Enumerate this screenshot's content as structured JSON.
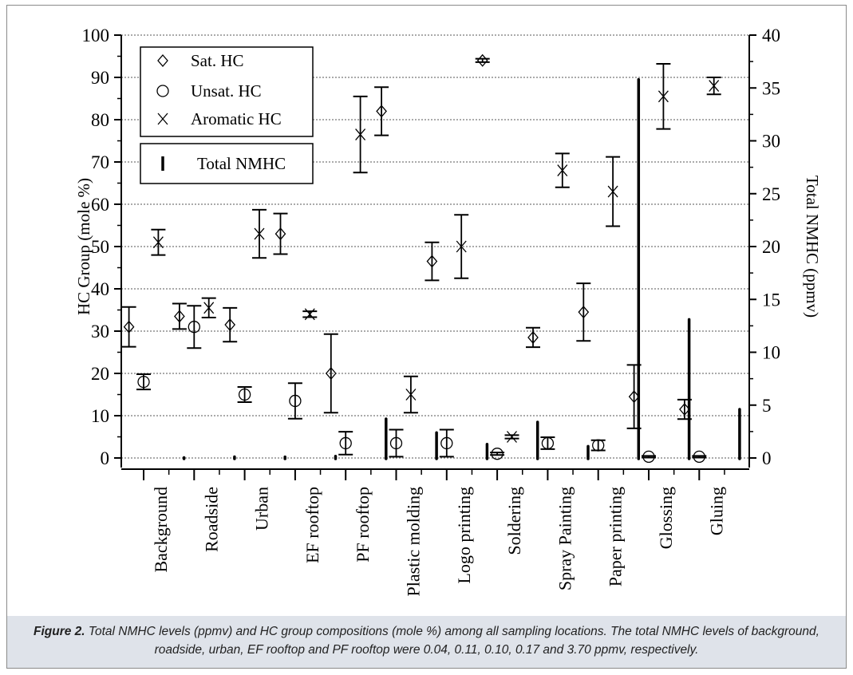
{
  "caption": {
    "label": "Figure 2.",
    "text": " Total NMHC levels (ppmv) and HC group compositions (mole %) among all sampling locations. The total NMHC levels of background, roadside, urban, EF rooftop and PF rooftop were 0.04, 0.11, 0.10, 0.17 and 3.70 ppmv, respectively."
  },
  "chart_data": {
    "type": "scatter",
    "categories": [
      "Background",
      "Roadside",
      "Urban",
      "EF rooftop",
      "PF rooftop",
      "Plastic molding",
      "Logo printing",
      "Soldering",
      "Spray Painting",
      "Paper printing",
      "Glossing",
      "Gluing"
    ],
    "ylabel": "HC Group (mole %)",
    "ylim": [
      0,
      100
    ],
    "yticks": [
      0,
      10,
      20,
      30,
      40,
      50,
      60,
      70,
      80,
      90,
      100
    ],
    "y2label": "Total NMHC (ppmv)",
    "y2lim": [
      0,
      40
    ],
    "y2ticks": [
      0,
      5,
      10,
      15,
      20,
      25,
      30,
      35,
      40
    ],
    "grid": true,
    "legend_position": "top-left",
    "series": [
      {
        "name": "Sat. HC",
        "marker": "diamond",
        "values": [
          31.0,
          33.5,
          31.5,
          53.0,
          20.0,
          82.0,
          46.5,
          94.0,
          28.5,
          34.5,
          14.5,
          11.5
        ],
        "errors": [
          4.7,
          3.0,
          4.0,
          4.8,
          9.3,
          5.7,
          4.5,
          0.4,
          2.3,
          6.8,
          7.5,
          2.3
        ]
      },
      {
        "name": "Unsat. HC",
        "marker": "circle",
        "values": [
          18.0,
          31.0,
          15.0,
          13.5,
          3.5,
          3.5,
          3.5,
          1.0,
          3.5,
          3.0,
          0.3,
          0.3
        ],
        "errors": [
          1.8,
          5.0,
          1.8,
          4.2,
          2.7,
          3.2,
          3.2,
          0.3,
          1.4,
          1.2,
          0.2,
          0.2
        ]
      },
      {
        "name": "Aromatic HC",
        "marker": "x",
        "values": [
          51.0,
          35.5,
          53.0,
          34.0,
          76.5,
          15.0,
          50.0,
          5.0,
          68.0,
          63.0,
          85.5,
          88.0
        ],
        "errors": [
          3.0,
          2.3,
          5.7,
          0.7,
          9.0,
          4.3,
          7.5,
          0.4,
          4.0,
          8.2,
          7.7,
          2.0
        ]
      },
      {
        "name": "Total NMHC",
        "marker": "bar",
        "axis": "right",
        "values": [
          0.04,
          0.11,
          0.1,
          0.17,
          3.7,
          2.4,
          1.3,
          3.4,
          1.1,
          35.8,
          13.1,
          4.6
        ]
      }
    ]
  }
}
